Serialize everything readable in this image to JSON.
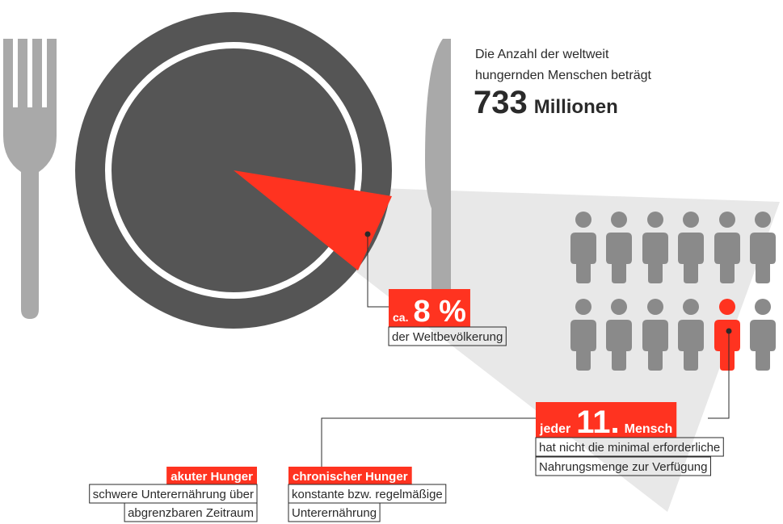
{
  "headline": {
    "line1": "Die Anzahl der weltweit",
    "line2": "hungernden Menschen beträgt",
    "number": "733",
    "unit": "Millionen"
  },
  "share": {
    "prefix": "ca.",
    "number": "8 %",
    "caption": "der Weltbevölkerung"
  },
  "ratio": {
    "prefix": "jeder",
    "number": "11.",
    "suffix": "Mensch",
    "caption_lines": [
      "hat nicht die minimal erforderliche",
      "Nahrungsmenge zur Verfügung"
    ]
  },
  "acute": {
    "title": "akuter Hunger",
    "lines": [
      "schwere Unterernährung über",
      "abgrenzbaren Zeitraum"
    ]
  },
  "chronic": {
    "title": "chronischer Hunger",
    "lines": [
      "konstante bzw. regelmäßige",
      "Unterernährung"
    ]
  }
}
